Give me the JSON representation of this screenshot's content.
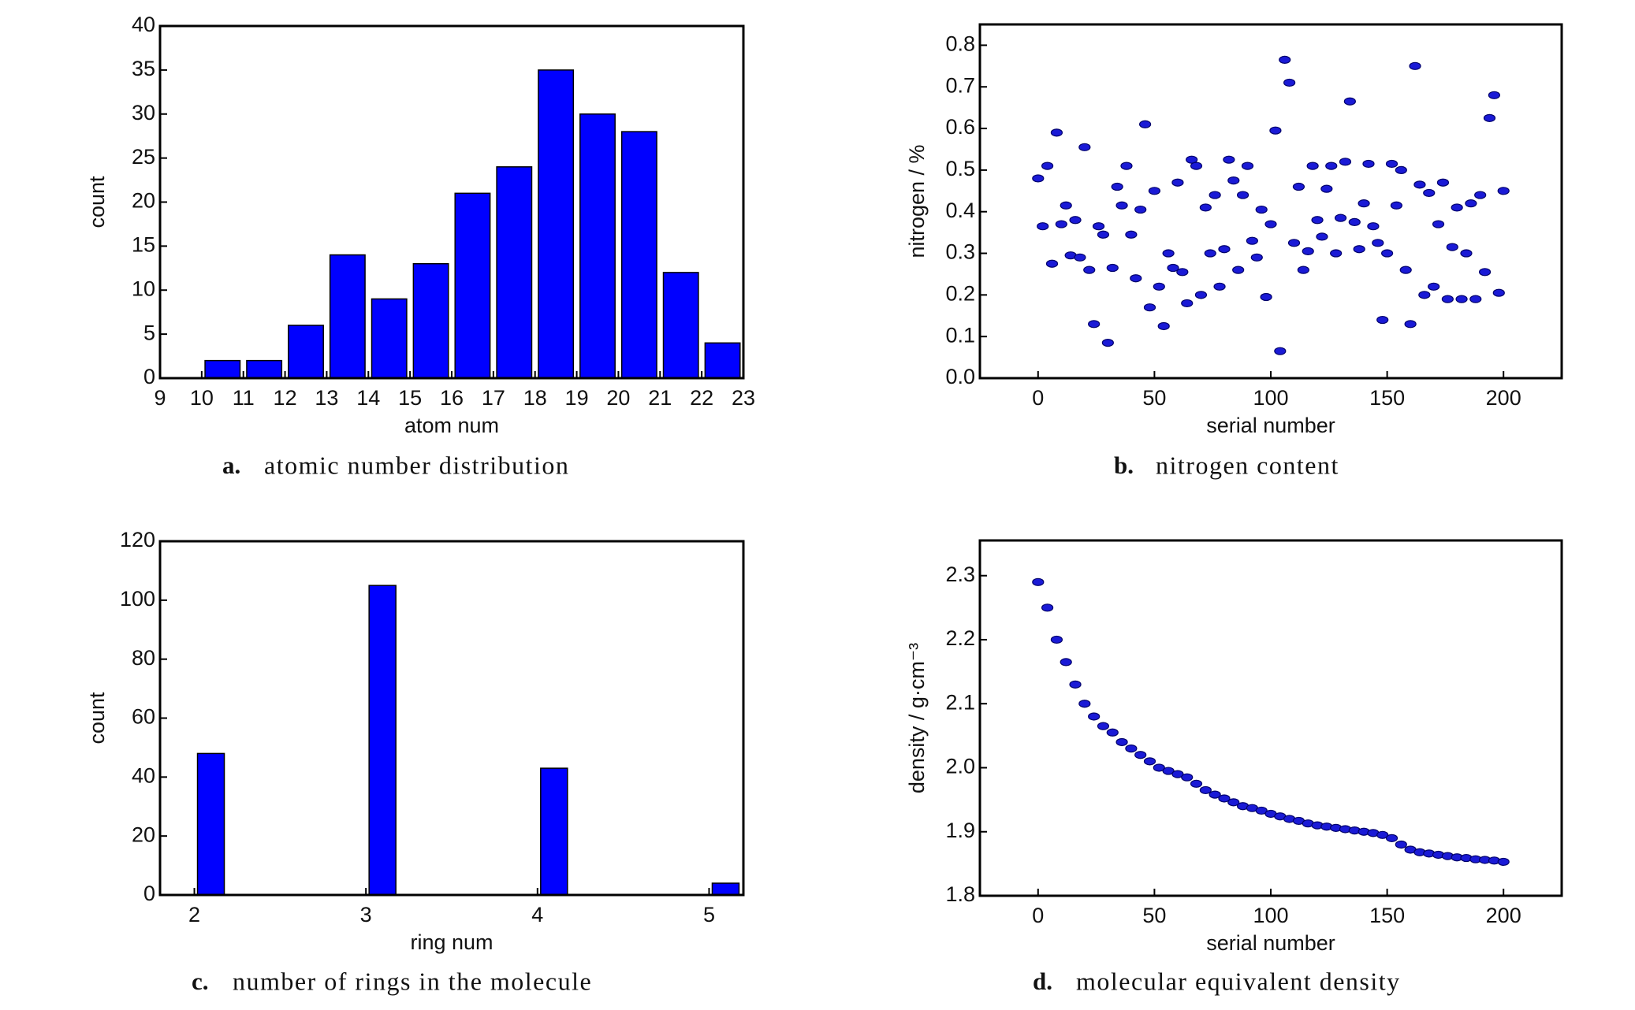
{
  "chart_data": [
    {
      "type": "histogram",
      "panel_label": "a.",
      "caption": "atomic number distribution",
      "xlabel": "atom num",
      "ylabel": "count",
      "bins": [
        9,
        10,
        11,
        12,
        13,
        14,
        15,
        16,
        17,
        18,
        19,
        20,
        21,
        22,
        23
      ],
      "values": [
        0,
        2,
        2,
        6,
        14,
        9,
        13,
        21,
        24,
        35,
        30,
        28,
        12,
        4
      ],
      "color": "#0000ff",
      "xlim": [
        9,
        23
      ],
      "xticks": [
        9,
        10,
        11,
        12,
        13,
        14,
        15,
        16,
        17,
        18,
        19,
        20,
        21,
        22,
        23
      ],
      "ylim": [
        0,
        40
      ],
      "yticks": [
        0,
        5,
        10,
        15,
        20,
        25,
        30,
        35,
        40
      ]
    },
    {
      "type": "scatter",
      "panel_label": "b.",
      "caption": "nitrogen content",
      "xlabel": "serial number",
      "ylabel": "nitrogen / %",
      "x": [
        0,
        2,
        4,
        6,
        8,
        10,
        12,
        14,
        16,
        18,
        20,
        22,
        24,
        26,
        28,
        30,
        32,
        34,
        36,
        38,
        40,
        42,
        44,
        46,
        48,
        50,
        52,
        54,
        56,
        58,
        60,
        62,
        64,
        66,
        68,
        70,
        72,
        74,
        76,
        78,
        80,
        82,
        84,
        86,
        88,
        90,
        92,
        94,
        96,
        98,
        100,
        102,
        104,
        106,
        108,
        110,
        112,
        114,
        116,
        118,
        120,
        122,
        124,
        126,
        128,
        130,
        132,
        134,
        136,
        138,
        140,
        142,
        144,
        146,
        148,
        150,
        152,
        154,
        156,
        158,
        160,
        162,
        164,
        166,
        168,
        170,
        172,
        174,
        176,
        178,
        180,
        182,
        184,
        186,
        188,
        190,
        192,
        194,
        196,
        198,
        200
      ],
      "values": [
        0.48,
        0.365,
        0.51,
        0.275,
        0.59,
        0.37,
        0.415,
        0.295,
        0.38,
        0.29,
        0.555,
        0.26,
        0.13,
        0.365,
        0.345,
        0.085,
        0.265,
        0.46,
        0.415,
        0.51,
        0.345,
        0.24,
        0.405,
        0.61,
        0.17,
        0.45,
        0.22,
        0.125,
        0.3,
        0.265,
        0.47,
        0.255,
        0.18,
        0.525,
        0.51,
        0.2,
        0.41,
        0.3,
        0.44,
        0.22,
        0.31,
        0.525,
        0.475,
        0.26,
        0.44,
        0.51,
        0.33,
        0.29,
        0.405,
        0.195,
        0.37,
        0.595,
        0.065,
        0.765,
        0.71,
        0.325,
        0.46,
        0.26,
        0.305,
        0.51,
        0.38,
        0.34,
        0.455,
        0.51,
        0.3,
        0.385,
        0.52,
        0.665,
        0.375,
        0.31,
        0.42,
        0.515,
        0.365,
        0.325,
        0.14,
        0.3,
        0.515,
        0.415,
        0.5,
        0.26,
        0.13,
        0.75,
        0.465,
        0.2,
        0.445,
        0.22,
        0.37,
        0.47,
        0.19,
        0.315,
        0.41,
        0.19,
        0.3,
        0.42,
        0.19,
        0.44,
        0.255,
        0.625,
        0.68,
        0.205,
        0.45
      ],
      "color": "#1a1ad6",
      "xlim": [
        -25,
        225
      ],
      "xticks": [
        0,
        50,
        100,
        150,
        200
      ],
      "ylim": [
        0,
        0.85
      ],
      "yticks": [
        {
          "value": 0,
          "label": "0.0"
        },
        0.1,
        0.2,
        0.3,
        0.4,
        0.5,
        0.6,
        0.7,
        0.8
      ]
    },
    {
      "type": "bar",
      "panel_label": "c.",
      "caption": "number of rings in the molecule",
      "xlabel": "ring num",
      "ylabel": "count",
      "x": [
        2,
        3,
        4,
        5
      ],
      "values": [
        48,
        105,
        43,
        4
      ],
      "color": "#0000ff",
      "xlim": [
        1.8,
        5.2
      ],
      "xticks": [
        2,
        3,
        4,
        5
      ],
      "ylim": [
        0,
        120
      ],
      "yticks": [
        0,
        20,
        40,
        60,
        80,
        100,
        120
      ]
    },
    {
      "type": "scatter",
      "panel_label": "d.",
      "caption": "molecular equivalent density",
      "xlabel": "serial number",
      "ylabel": "density / g·cm⁻³",
      "x": [
        0,
        4,
        8,
        12,
        16,
        20,
        24,
        28,
        32,
        36,
        40,
        44,
        48,
        52,
        56,
        60,
        64,
        68,
        72,
        76,
        80,
        84,
        88,
        92,
        96,
        100,
        104,
        108,
        112,
        116,
        120,
        124,
        128,
        132,
        136,
        140,
        144,
        148,
        152,
        156,
        160,
        164,
        168,
        172,
        176,
        180,
        184,
        188,
        192,
        196,
        200
      ],
      "values": [
        2.29,
        2.25,
        2.2,
        2.165,
        2.13,
        2.1,
        2.08,
        2.065,
        2.055,
        2.04,
        2.03,
        2.02,
        2.01,
        2.0,
        1.995,
        1.99,
        1.985,
        1.975,
        1.965,
        1.958,
        1.952,
        1.946,
        1.94,
        1.937,
        1.933,
        1.928,
        1.924,
        1.92,
        1.917,
        1.913,
        1.91,
        1.908,
        1.906,
        1.904,
        1.902,
        1.9,
        1.898,
        1.895,
        1.89,
        1.88,
        1.872,
        1.868,
        1.866,
        1.864,
        1.862,
        1.86,
        1.859,
        1.857,
        1.856,
        1.855,
        1.853
      ],
      "color": "#1a1ad6",
      "xlim": [
        -25,
        225
      ],
      "xticks": [
        0,
        50,
        100,
        150,
        200
      ],
      "ylim": [
        1.8,
        2.355
      ],
      "yticks": [
        1.8,
        1.9,
        {
          "value": 2,
          "label": "2.0"
        },
        2.1,
        2.2,
        2.3
      ]
    }
  ]
}
